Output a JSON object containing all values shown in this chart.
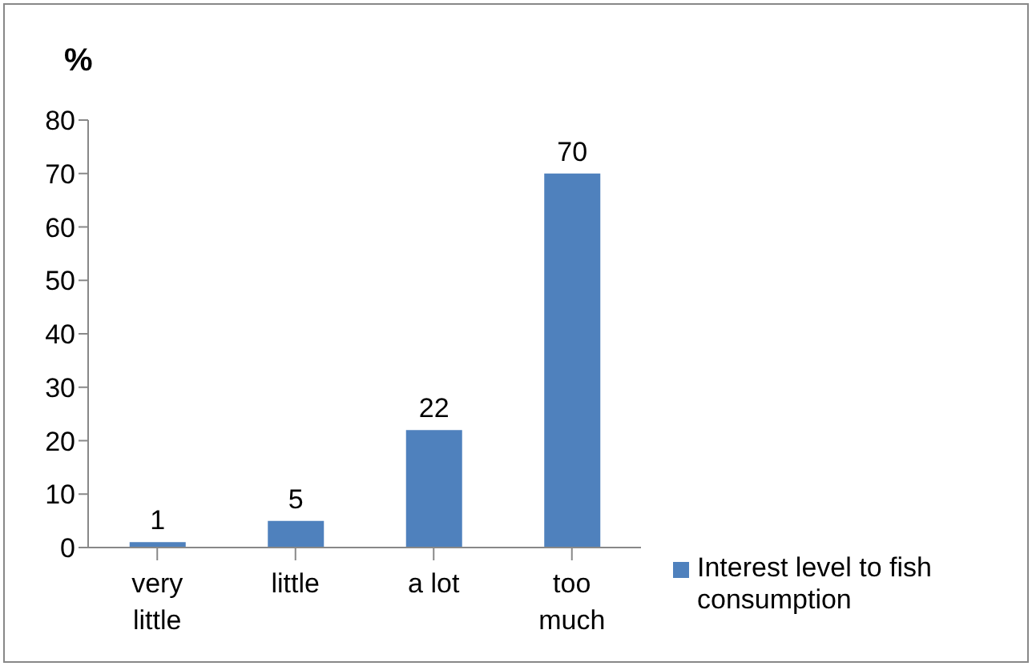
{
  "chart_data": {
    "type": "bar",
    "ylabel": "%",
    "categories": [
      "very little",
      "little",
      "a lot",
      "too much"
    ],
    "series": [
      {
        "name": "Interest level to fish consumption",
        "color": "#4f81bd",
        "values": [
          1,
          5,
          22,
          70
        ]
      }
    ],
    "ylim": [
      0,
      80
    ],
    "yticks": [
      0,
      10,
      20,
      30,
      40,
      50,
      60,
      70,
      80
    ],
    "data_labels": true,
    "legend": "bottom right"
  }
}
